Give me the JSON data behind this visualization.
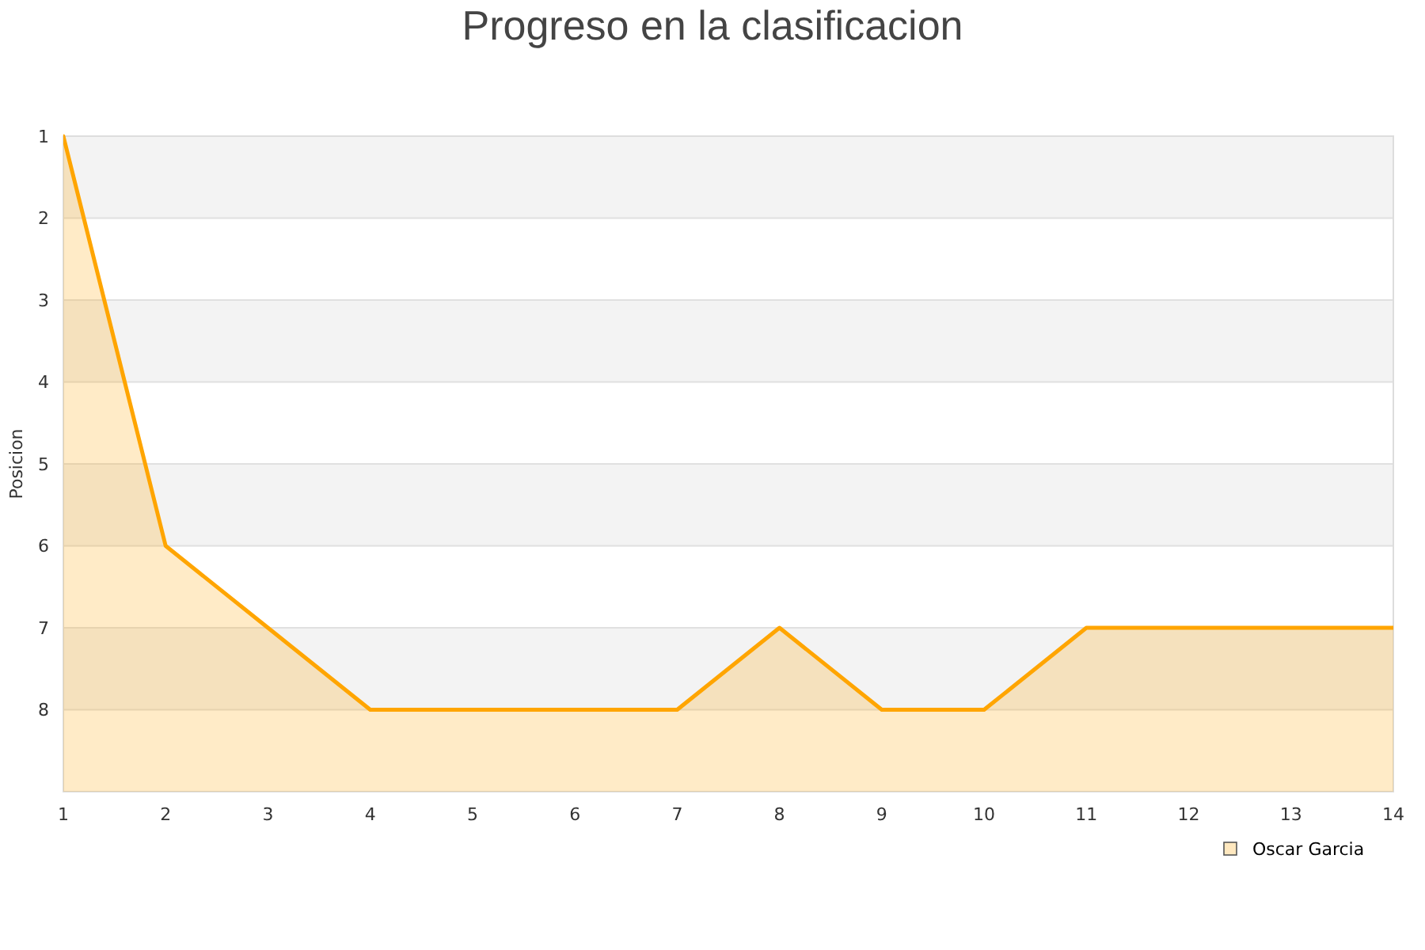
{
  "chart_data": {
    "type": "area",
    "title": "Progreso en la clasificacion",
    "ylabel": "Posicion",
    "x": [
      1,
      2,
      3,
      4,
      5,
      6,
      7,
      8,
      9,
      10,
      11,
      12,
      13,
      14
    ],
    "series": [
      {
        "name": "Oscar Garcia",
        "color": "#ffa500",
        "values": [
          1,
          6,
          7,
          8,
          8,
          8,
          8,
          7,
          8,
          8,
          7,
          7,
          7,
          7
        ]
      }
    ],
    "xlim": [
      1,
      14
    ],
    "xticks": [
      1,
      2,
      3,
      4,
      5,
      6,
      7,
      8,
      9,
      10,
      11,
      12,
      13,
      14
    ],
    "ylim": [
      9,
      1
    ],
    "yticks": [
      1,
      2,
      3,
      4,
      5,
      6,
      7,
      8
    ],
    "bands": [
      {
        "axis": "y",
        "from": 1,
        "to": 2,
        "color": "#f3f3f3"
      },
      {
        "axis": "y",
        "from": 3,
        "to": 4,
        "color": "#f3f3f3"
      },
      {
        "axis": "y",
        "from": 5,
        "to": 6,
        "color": "#f3f3f3"
      },
      {
        "axis": "y",
        "from": 7,
        "to": 8,
        "color": "#f3f3f3"
      }
    ],
    "grid": "y",
    "legend": "bottom right"
  }
}
